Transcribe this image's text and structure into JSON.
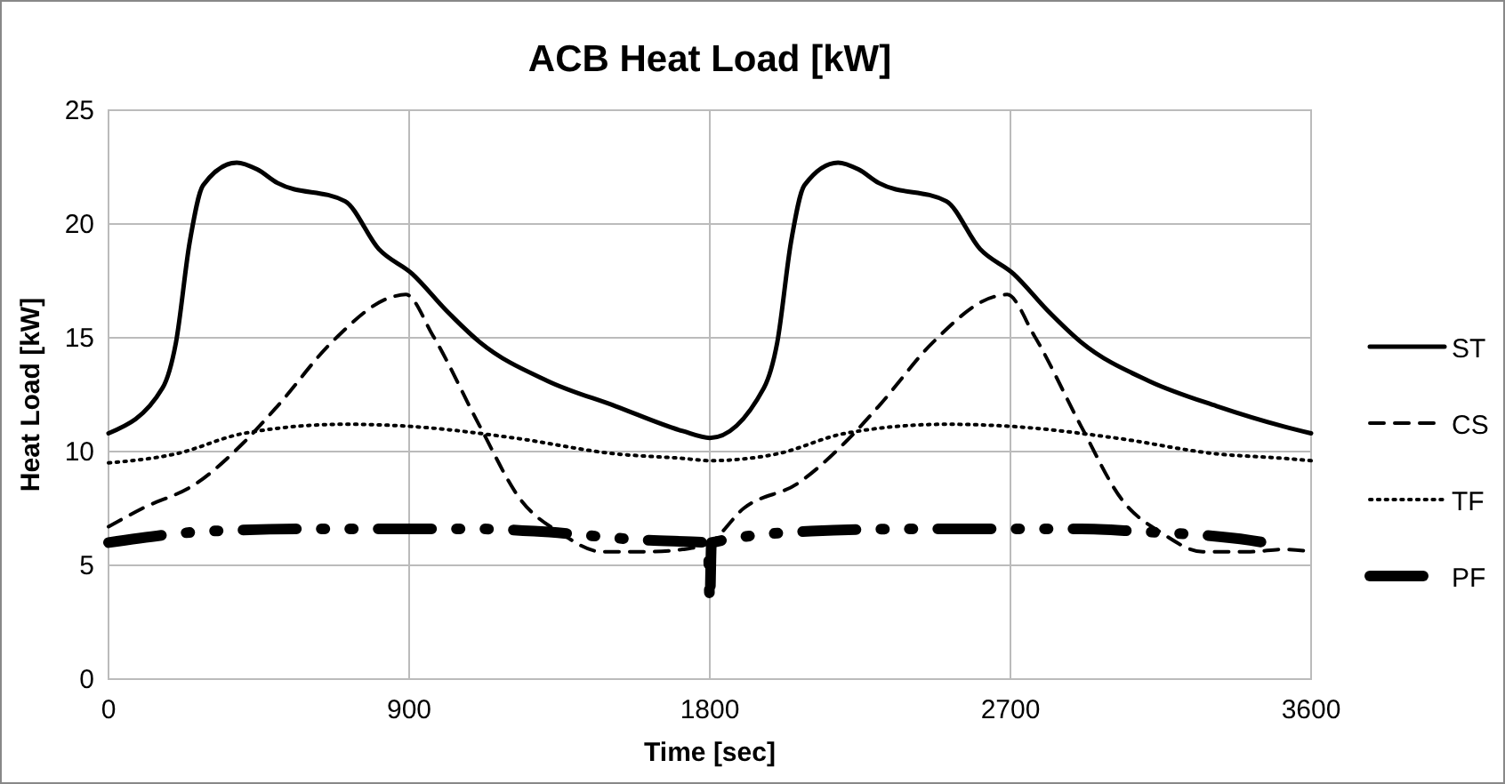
{
  "chart_data": {
    "type": "line",
    "title": "ACB Heat Load [kW]",
    "xlabel": "Time [sec]",
    "ylabel": "Heat Load [kW]",
    "xlim": [
      0,
      3600
    ],
    "xticks": [
      0,
      900,
      1800,
      2700,
      3600
    ],
    "ylim": [
      0,
      25
    ],
    "yticks": [
      0,
      5,
      10,
      15,
      20,
      25
    ],
    "grid": true,
    "legend": "right",
    "marker": "none",
    "series": [
      {
        "name": "ST",
        "color": "#000000",
        "line_style": "solid",
        "x": [
          0,
          162,
          202,
          243,
          283,
          384,
          445,
          506,
          708,
          809,
          910,
          1011,
          1112,
          1315,
          1517,
          1719,
          1800,
          1962,
          2002,
          2043,
          2083,
          2184,
          2245,
          2306,
          2508,
          2609,
          2710,
          2811,
          2912,
          3115,
          3317,
          3519,
          3600
        ],
        "values": [
          10.8,
          12.8,
          14.8,
          19.2,
          21.7,
          22.7,
          22.4,
          21.8,
          21.0,
          18.9,
          17.8,
          16.2,
          14.8,
          13.1,
          12.0,
          10.9,
          10.6,
          12.8,
          14.8,
          19.2,
          21.7,
          22.7,
          22.4,
          21.8,
          21.0,
          18.9,
          17.8,
          16.2,
          14.8,
          13.1,
          12.0,
          11.1,
          10.8
        ]
      },
      {
        "name": "CS",
        "color": "#000000",
        "line_style": "dashed",
        "x": [
          0,
          101,
          263,
          405,
          506,
          668,
          850,
          890,
          971,
          1112,
          1233,
          1355,
          1476,
          1618,
          1719,
          1800,
          1901,
          2063,
          2205,
          2306,
          2468,
          2650,
          2690,
          2771,
          2912,
          3033,
          3155,
          3276,
          3418,
          3519,
          3600
        ],
        "values": [
          6.7,
          7.5,
          8.6,
          10.4,
          12.0,
          14.8,
          16.8,
          16.9,
          15.1,
          11.1,
          7.9,
          6.4,
          5.6,
          5.6,
          5.7,
          6.0,
          7.5,
          8.6,
          10.4,
          12.0,
          14.8,
          16.8,
          16.9,
          15.1,
          11.1,
          7.9,
          6.4,
          5.6,
          5.6,
          5.7,
          5.6
        ]
      },
      {
        "name": "TF",
        "color": "#000000",
        "line_style": "dotted",
        "x": [
          0,
          202,
          405,
          708,
          910,
          1213,
          1517,
          1719,
          1800,
          2002,
          2205,
          2508,
          2710,
          3013,
          3317,
          3519,
          3600
        ],
        "values": [
          9.5,
          9.9,
          10.8,
          11.2,
          11.1,
          10.6,
          9.9,
          9.7,
          9.6,
          9.9,
          10.8,
          11.2,
          11.1,
          10.6,
          9.9,
          9.7,
          9.6
        ]
      },
      {
        "name": "PF",
        "color": "#000000",
        "line_style": "dashed",
        "x": [
          0,
          303,
          607,
          1112,
          1274,
          1618,
          1795,
          1800,
          1805,
          2103,
          2407,
          2912,
          3074,
          3418,
          3500
        ],
        "values": [
          6.0,
          6.5,
          6.6,
          6.6,
          6.5,
          6.1,
          6.0,
          3.4,
          6.0,
          6.5,
          6.6,
          6.6,
          6.5,
          6.1,
          5.9
        ]
      }
    ]
  }
}
